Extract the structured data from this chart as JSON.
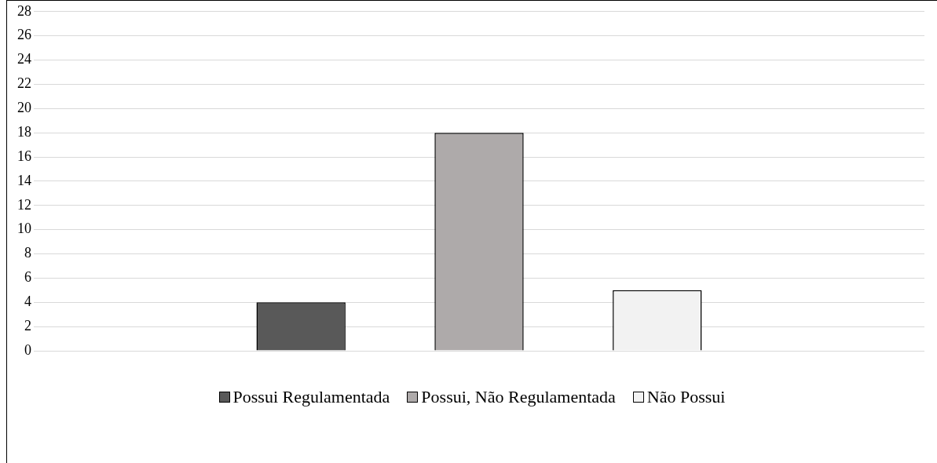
{
  "chart_data": {
    "type": "bar",
    "categories": [
      null
    ],
    "series": [
      {
        "name": "Possui Regulamentada",
        "color": "#595959",
        "values": [
          4
        ]
      },
      {
        "name": "Possui, Não Regulamentada",
        "color": "#aeaaaa",
        "values": [
          18
        ]
      },
      {
        "name": "Não Possui",
        "color": "#f2f2f2",
        "values": [
          5
        ]
      }
    ],
    "ylim": [
      0,
      28
    ],
    "yticks": [
      0,
      2,
      4,
      6,
      8,
      10,
      12,
      14,
      16,
      18,
      20,
      22,
      24,
      26,
      28
    ],
    "grid": "y",
    "legend": "bottom"
  }
}
